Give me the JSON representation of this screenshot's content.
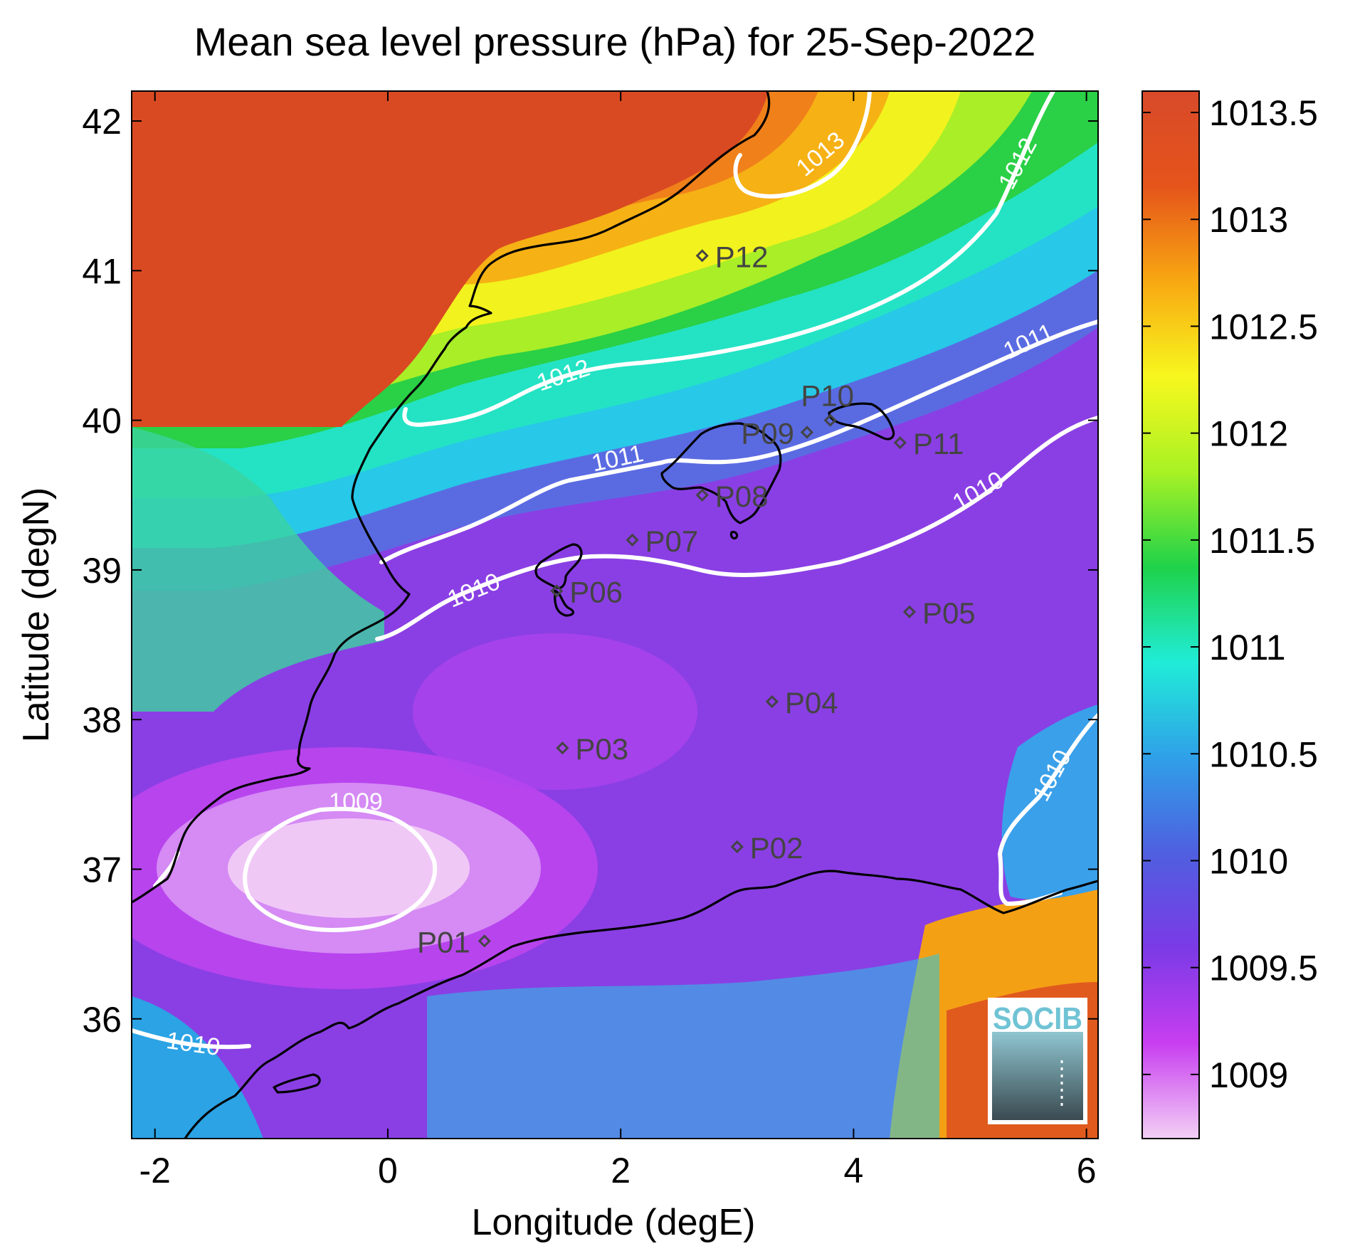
{
  "chart_data": {
    "type": "heatmap",
    "title": "Mean sea level pressure (hPa) for 25-Sep-2022",
    "xlabel": "Longitude (degE)",
    "ylabel": "Latitude (degN)",
    "xlim": [
      -2.2,
      6.1
    ],
    "ylim": [
      35.2,
      42.2
    ],
    "xticks": [
      -2,
      0,
      2,
      4,
      6
    ],
    "xtick_labels": [
      "-2",
      "0",
      "2",
      "4",
      "6"
    ],
    "yticks": [
      36,
      37,
      38,
      39,
      40,
      41,
      42
    ],
    "ytick_labels": [
      "36",
      "37",
      "38",
      "39",
      "40",
      "41",
      "42"
    ],
    "colorbar": {
      "range": [
        1008.7,
        1013.6
      ],
      "ticks": [
        1009,
        1009.5,
        1010,
        1010.5,
        1011,
        1011.5,
        1012,
        1012.5,
        1013,
        1013.5
      ],
      "tick_labels": [
        "1009",
        "1009.5",
        "1010",
        "1010.5",
        "1011",
        "1011.5",
        "1012",
        "1012.5",
        "1013",
        "1013.5"
      ],
      "colors": [
        "#f3d0f5",
        "#c83ef0",
        "#7b3ae6",
        "#4f5fe0",
        "#2fa0e8",
        "#20ecd8",
        "#1fd24a",
        "#a8f224",
        "#f7f71e",
        "#f8a812",
        "#e5541a",
        "#d84a2a"
      ]
    },
    "stations": [
      {
        "name": "P01",
        "lon": 0.83,
        "lat": 36.52
      },
      {
        "name": "P02",
        "lon": 3.0,
        "lat": 37.15
      },
      {
        "name": "P03",
        "lon": 1.5,
        "lat": 37.81
      },
      {
        "name": "P04",
        "lon": 3.3,
        "lat": 38.12
      },
      {
        "name": "P05",
        "lon": 4.48,
        "lat": 38.72
      },
      {
        "name": "P06",
        "lon": 1.45,
        "lat": 38.86
      },
      {
        "name": "P07",
        "lon": 2.1,
        "lat": 39.2
      },
      {
        "name": "P08",
        "lon": 2.7,
        "lat": 39.5
      },
      {
        "name": "P09",
        "lon": 3.6,
        "lat": 39.92
      },
      {
        "name": "P10",
        "lon": 3.8,
        "lat": 40.0
      },
      {
        "name": "P11",
        "lon": 4.4,
        "lat": 39.85
      },
      {
        "name": "P12",
        "lon": 2.7,
        "lat": 41.1
      }
    ],
    "contour_labels": [
      "1009",
      "1010",
      "1010",
      "1010",
      "1010",
      "1011",
      "1011",
      "1012",
      "1012",
      "1013"
    ]
  },
  "logo": {
    "text": "SOCIB"
  }
}
